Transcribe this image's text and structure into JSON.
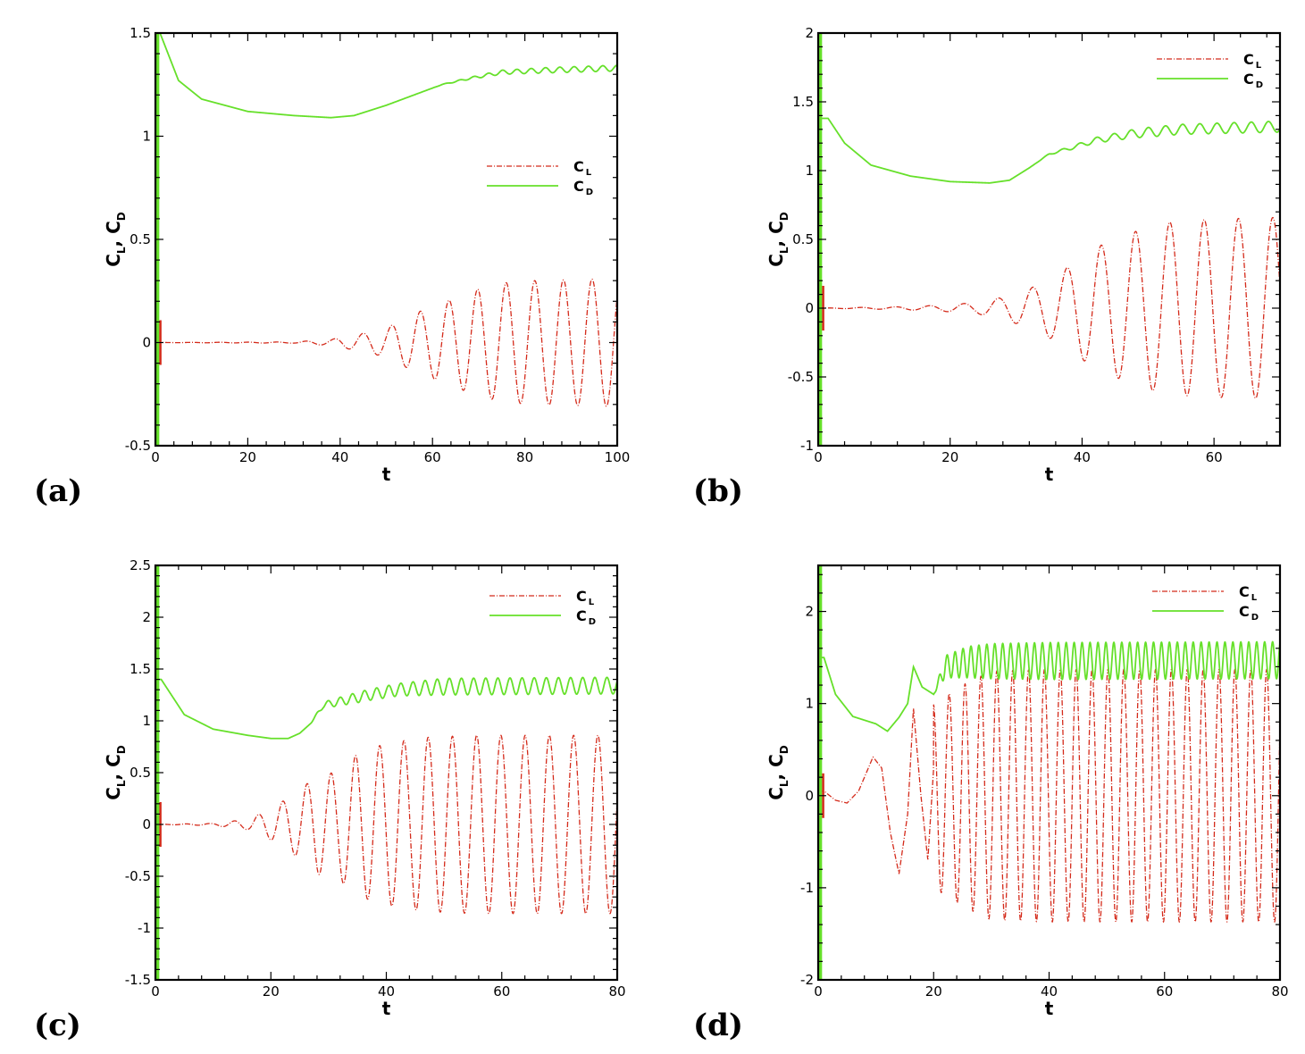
{
  "figure": {
    "series_colors": {
      "C_L": "#d42a1a",
      "C_D": "#66e02a"
    },
    "panels": [
      {
        "label": "(a)"
      },
      {
        "label": "(b)"
      },
      {
        "label": "(c)"
      },
      {
        "label": "(d)"
      }
    ]
  },
  "chart_data": [
    {
      "type": "line",
      "panel": "(a)",
      "xlabel": "t",
      "ylabel": "C_L, C_D",
      "xlim": [
        0,
        100
      ],
      "ylim": [
        -0.5,
        1.5
      ],
      "xticks": [
        0,
        20,
        40,
        60,
        80,
        100
      ],
      "yticks": [
        -0.5,
        0,
        0.5,
        1,
        1.5
      ],
      "ytick_labels": [
        "-0.5",
        "0",
        "0.5",
        "1",
        "1.5"
      ],
      "legend": {
        "placement": "right-middle",
        "entries": [
          "C_L",
          "C_D"
        ]
      },
      "grid": false,
      "series": [
        {
          "name": "C_L",
          "style": "dash-dot",
          "period": 6.2,
          "mean": 0.0,
          "amplitude": [
            [
              0,
              0
            ],
            [
              30,
              0.003
            ],
            [
              38,
              0.015
            ],
            [
              44,
              0.04
            ],
            [
              50,
              0.07
            ],
            [
              56,
              0.14
            ],
            [
              63,
              0.2
            ],
            [
              70,
              0.26
            ],
            [
              76,
              0.29
            ],
            [
              82,
              0.3
            ],
            [
              100,
              0.31
            ]
          ]
        },
        {
          "name": "C_D",
          "style": "solid",
          "curve": [
            [
              1,
              1.5
            ],
            [
              5,
              1.27
            ],
            [
              10,
              1.18
            ],
            [
              20,
              1.12
            ],
            [
              30,
              1.1
            ],
            [
              38,
              1.09
            ],
            [
              43,
              1.1
            ],
            [
              50,
              1.15
            ],
            [
              56,
              1.2
            ],
            [
              62,
              1.25
            ],
            [
              68,
              1.28
            ],
            [
              75,
              1.31
            ],
            [
              85,
              1.32
            ],
            [
              100,
              1.33
            ]
          ],
          "ripple_period": 3.1,
          "ripple_amplitude": [
            [
              0,
              0
            ],
            [
              60,
              0
            ],
            [
              68,
              0.005
            ],
            [
              75,
              0.01
            ],
            [
              85,
              0.013
            ],
            [
              100,
              0.014
            ]
          ]
        }
      ]
    },
    {
      "type": "line",
      "panel": "(b)",
      "xlabel": "t",
      "ylabel": "C_L, C_D",
      "xlim": [
        0,
        70
      ],
      "ylim": [
        -1,
        2
      ],
      "xticks": [
        0,
        20,
        40,
        60
      ],
      "yticks": [
        -1,
        -0.5,
        0,
        0.5,
        1,
        1.5,
        2
      ],
      "ytick_labels": [
        "-1",
        "-0.5",
        "0",
        "0.5",
        "1",
        "1.5",
        "2"
      ],
      "legend": {
        "placement": "top-right",
        "entries": [
          "C_L",
          "C_D"
        ]
      },
      "grid": false,
      "series": [
        {
          "name": "C_L",
          "style": "dash-dot",
          "period": 5.2,
          "mean": 0.0,
          "amplitude": [
            [
              0,
              0
            ],
            [
              12,
              0.01
            ],
            [
              18,
              0.02
            ],
            [
              24,
              0.04
            ],
            [
              28,
              0.08
            ],
            [
              33,
              0.16
            ],
            [
              37,
              0.27
            ],
            [
              42,
              0.44
            ],
            [
              47,
              0.54
            ],
            [
              52,
              0.62
            ],
            [
              57,
              0.64
            ],
            [
              62,
              0.65
            ],
            [
              70,
              0.66
            ]
          ]
        },
        {
          "name": "C_D",
          "style": "solid",
          "curve": [
            [
              1.5,
              1.38
            ],
            [
              4,
              1.2
            ],
            [
              8,
              1.04
            ],
            [
              14,
              0.96
            ],
            [
              20,
              0.92
            ],
            [
              26,
              0.91
            ],
            [
              29,
              0.93
            ],
            [
              32,
              1.02
            ],
            [
              35,
              1.12
            ],
            [
              38,
              1.16
            ],
            [
              42,
              1.22
            ],
            [
              48,
              1.27
            ],
            [
              55,
              1.3
            ],
            [
              70,
              1.32
            ]
          ],
          "ripple_period": 2.6,
          "ripple_amplitude": [
            [
              0,
              0
            ],
            [
              33,
              0
            ],
            [
              37,
              0.01
            ],
            [
              42,
              0.02
            ],
            [
              50,
              0.035
            ],
            [
              70,
              0.04
            ]
          ]
        }
      ]
    },
    {
      "type": "line",
      "panel": "(c)",
      "xlabel": "t",
      "ylabel": "C_L, C_D",
      "xlim": [
        0,
        80
      ],
      "ylim": [
        -1.5,
        2.5
      ],
      "xticks": [
        0,
        20,
        40,
        60,
        80
      ],
      "yticks": [
        -1.5,
        -1,
        -0.5,
        0,
        0.5,
        1,
        1.5,
        2,
        2.5
      ],
      "ytick_labels": [
        "-1.5",
        "-1",
        "-0.5",
        "0",
        "0.5",
        "1",
        "1.5",
        "2",
        "2.5"
      ],
      "legend": {
        "placement": "top-right",
        "entries": [
          "C_L",
          "C_D"
        ]
      },
      "grid": false,
      "series": [
        {
          "name": "C_L",
          "style": "dash-dot",
          "period": 4.2,
          "mean": 0.0,
          "amplitude": [
            [
              0,
              0
            ],
            [
              10,
              0.01
            ],
            [
              16,
              0.05
            ],
            [
              20,
              0.15
            ],
            [
              25,
              0.33
            ],
            [
              28,
              0.48
            ],
            [
              31,
              0.5
            ],
            [
              35,
              0.68
            ],
            [
              38,
              0.75
            ],
            [
              42,
              0.8
            ],
            [
              47,
              0.84
            ],
            [
              55,
              0.86
            ],
            [
              80,
              0.86
            ]
          ]
        },
        {
          "name": "C_D",
          "style": "solid",
          "curve": [
            [
              1,
              1.4
            ],
            [
              5,
              1.06
            ],
            [
              10,
              0.92
            ],
            [
              16,
              0.86
            ],
            [
              20,
              0.83
            ],
            [
              23,
              0.83
            ],
            [
              25,
              0.88
            ],
            [
              27,
              0.98
            ],
            [
              29,
              1.15
            ],
            [
              33,
              1.2
            ],
            [
              37,
              1.25
            ],
            [
              42,
              1.3
            ],
            [
              50,
              1.33
            ],
            [
              80,
              1.34
            ]
          ],
          "ripple_period": 2.1,
          "ripple_amplitude": [
            [
              0,
              0
            ],
            [
              27,
              0
            ],
            [
              29,
              0.03
            ],
            [
              35,
              0.05
            ],
            [
              42,
              0.06
            ],
            [
              50,
              0.08
            ],
            [
              80,
              0.08
            ]
          ]
        }
      ]
    },
    {
      "type": "line",
      "panel": "(d)",
      "xlabel": "t",
      "ylabel": "C_L, C_D",
      "xlim": [
        0,
        80
      ],
      "ylim": [
        -2,
        2.5
      ],
      "xticks": [
        0,
        20,
        40,
        60,
        80
      ],
      "yticks": [
        -2,
        -1,
        0,
        1,
        2
      ],
      "ytick_labels": [
        "-2",
        "-1",
        "0",
        "1",
        "2"
      ],
      "legend": {
        "placement": "top-right",
        "entries": [
          "C_L",
          "C_D"
        ]
      },
      "grid": false,
      "series": [
        {
          "name": "C_L",
          "style": "dash-dot",
          "period": 2.75,
          "mean": 0.0,
          "amplitude": [
            [
              0,
              0
            ],
            [
              20,
              1.0
            ],
            [
              25,
              1.2
            ],
            [
              30,
              1.35
            ],
            [
              40,
              1.37
            ],
            [
              80,
              1.37
            ]
          ],
          "transient": [
            [
              1,
              0.05
            ],
            [
              3,
              -0.05
            ],
            [
              5,
              -0.08
            ],
            [
              7,
              0.05
            ],
            [
              9.5,
              0.42
            ],
            [
              11,
              0.3
            ],
            [
              12.5,
              -0.4
            ],
            [
              14,
              -0.85
            ],
            [
              15.5,
              -0.2
            ],
            [
              16.5,
              0.95
            ],
            [
              17.8,
              0.0
            ],
            [
              19,
              -0.7
            ],
            [
              20,
              0.3
            ]
          ]
        },
        {
          "name": "C_D",
          "style": "solid",
          "curve": [
            [
              1,
              1.5
            ],
            [
              3,
              1.1
            ],
            [
              6,
              0.86
            ],
            [
              10,
              0.78
            ],
            [
              12,
              0.7
            ],
            [
              14,
              0.85
            ],
            [
              15.5,
              1.0
            ],
            [
              16.5,
              1.4
            ],
            [
              18,
              1.18
            ],
            [
              20,
              1.1
            ],
            [
              22,
              1.4
            ],
            [
              26,
              1.45
            ],
            [
              30,
              1.46
            ],
            [
              80,
              1.47
            ]
          ],
          "ripple_period": 1.375,
          "ripple_amplitude": [
            [
              0,
              0
            ],
            [
              20,
              0
            ],
            [
              22,
              0.12
            ],
            [
              26,
              0.17
            ],
            [
              30,
              0.19
            ],
            [
              40,
              0.2
            ],
            [
              80,
              0.2
            ]
          ]
        }
      ]
    }
  ]
}
